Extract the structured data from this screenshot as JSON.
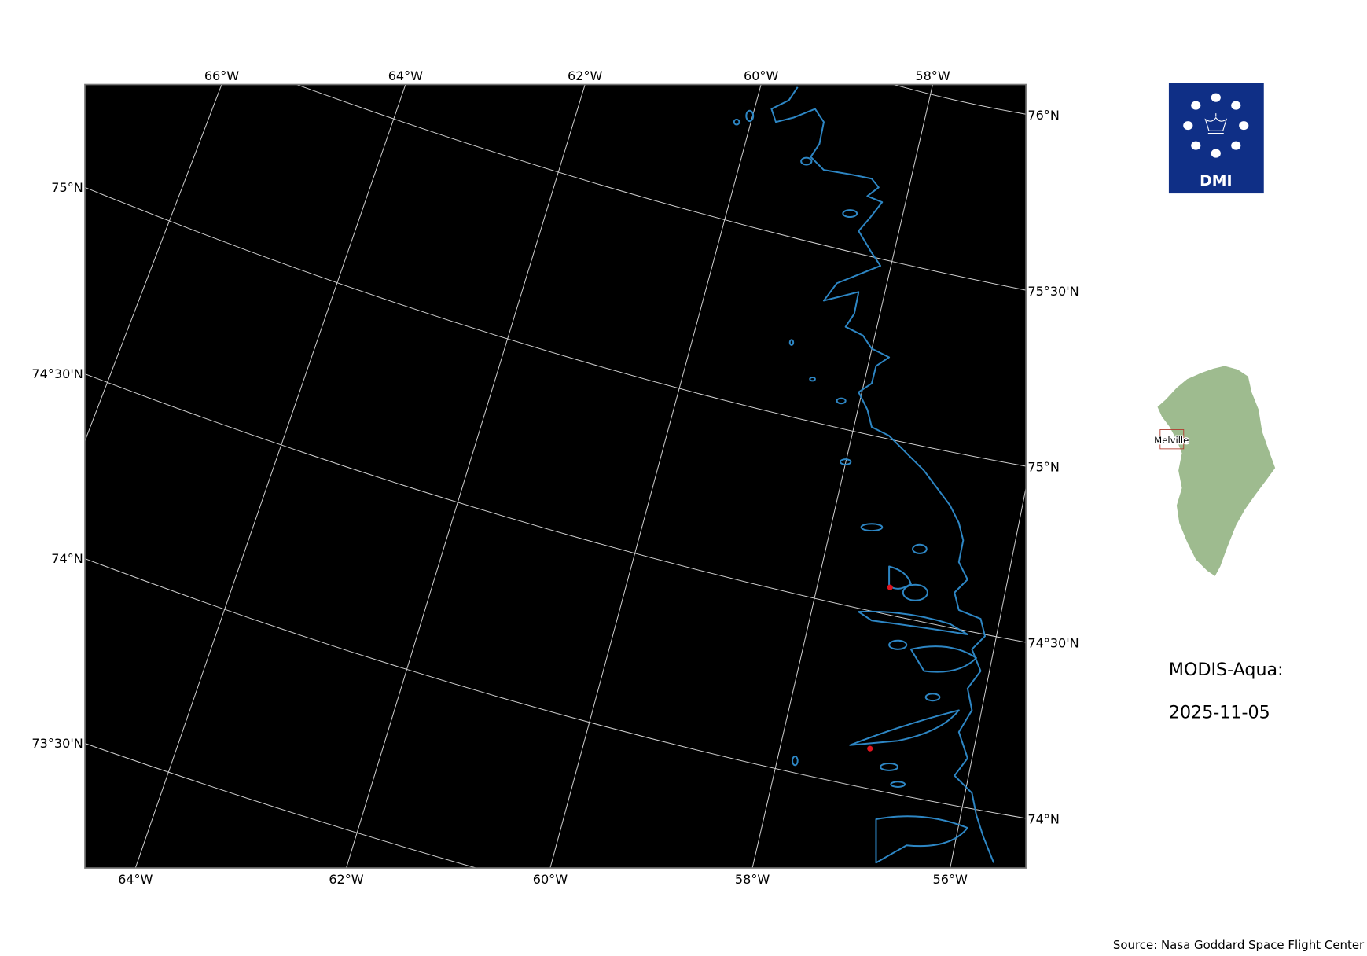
{
  "map": {
    "top_labels": [
      "66°W",
      "64°W",
      "62°W",
      "60°W",
      "58°W"
    ],
    "bottom_labels": [
      "64°W",
      "62°W",
      "60°W",
      "58°W",
      "56°W"
    ],
    "left_labels": [
      "75°N",
      "74°30'N",
      "74°N",
      "73°30'N"
    ],
    "right_labels": [
      "76°N",
      "75°30'N",
      "75°N",
      "74°30'N",
      "74°N"
    ],
    "background_color": "#000000",
    "coastline_color": "#2d86c4",
    "gridline_color": "#cfcfcf",
    "marker_color": "#e0141e"
  },
  "logo": {
    "text": "DMI",
    "color": "#0f2f86"
  },
  "inset": {
    "label": "Melville",
    "land_color": "#9ebb8f",
    "box_color": "#b03a2e"
  },
  "info": {
    "sensor": "MODIS-Aqua:",
    "date": "2025-11-05"
  },
  "source": "Source: Nasa Goddard Space Flight Center"
}
